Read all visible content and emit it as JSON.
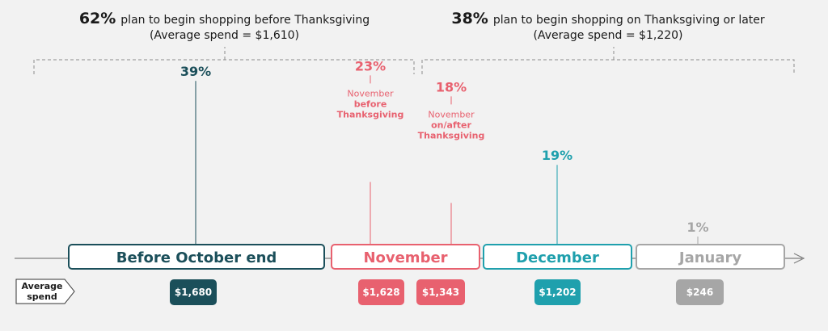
{
  "headers": {
    "left": {
      "pct": "62%",
      "text": "plan to begin shopping before Thanksgiving",
      "sub": "(Average spend = $1,610)"
    },
    "right": {
      "pct": "38%",
      "text": "plan to begin shopping on Thanksgiving or later",
      "sub": "(Average spend = $1,220)"
    }
  },
  "average_spend_label": [
    "Average",
    "spend"
  ],
  "colors": {
    "dark_teal": "#1b4f5a",
    "red": "#e8616f",
    "teal": "#1fa0ad",
    "gray": "#a6a6a6",
    "axis": "#7f7f7f"
  },
  "chart_data": {
    "type": "bar",
    "categories": [
      "Before October end",
      "November",
      "December",
      "January"
    ],
    "series": [
      {
        "category": "Before October end",
        "pct": 39,
        "pct_label": "39%",
        "note": [],
        "spend": 1680,
        "spend_label": "$1,680",
        "color": "#1b4f5a"
      },
      {
        "category": "November",
        "pct": 23,
        "pct_label": "23%",
        "note": [
          "November",
          "before",
          "Thanksgiving"
        ],
        "spend": 1628,
        "spend_label": "$1,628",
        "color": "#e8616f"
      },
      {
        "category": "November",
        "pct": 18,
        "pct_label": "18%",
        "note": [
          "November",
          "on/after",
          "Thanksgiving"
        ],
        "spend": 1343,
        "spend_label": "$1,343",
        "color": "#e8616f"
      },
      {
        "category": "December",
        "pct": 19,
        "pct_label": "19%",
        "note": [],
        "spend": 1202,
        "spend_label": "$1,202",
        "color": "#1fa0ad"
      },
      {
        "category": "January",
        "pct": 1,
        "pct_label": "1%",
        "note": [],
        "spend": 246,
        "spend_label": "$246",
        "color": "#a6a6a6"
      }
    ]
  }
}
